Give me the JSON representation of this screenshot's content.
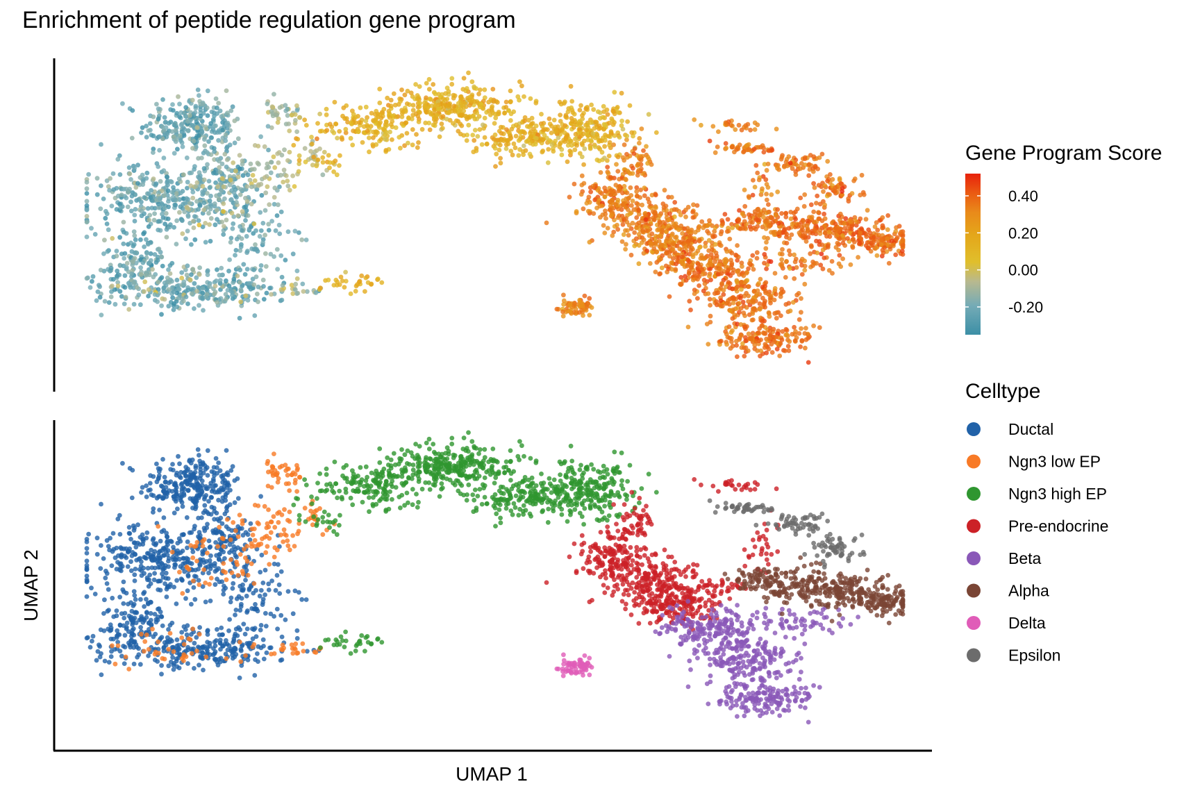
{
  "title": "Enrichment of peptide regulation gene program",
  "chart_data": [
    {
      "panel": "Gene Program Score",
      "type": "scatter",
      "xlabel": "UMAP 1",
      "ylabel": "UMAP 2",
      "xlim": [
        0,
        100
      ],
      "ylim": [
        0,
        100
      ],
      "grid": false,
      "color_scale": {
        "title": "Gene Program Score",
        "domain": [
          -0.35,
          0.52
        ],
        "ticks": [
          0.4,
          0.2,
          0.0,
          -0.2
        ],
        "tick_labels": [
          "0.40",
          "0.20",
          "0.00",
          "-0.20"
        ],
        "colors": [
          "#3c8fa6",
          "#74abb6",
          "#b8b98f",
          "#e0bf2c",
          "#e4a61a",
          "#e98a1a",
          "#ea5a12",
          "#e8220c"
        ]
      }
    },
    {
      "panel": "Celltype",
      "type": "scatter",
      "xlabel": "UMAP 1",
      "ylabel": "UMAP 2",
      "xlim": [
        0,
        100
      ],
      "ylim": [
        0,
        100
      ],
      "grid": false,
      "legend_title": "Celltype",
      "legend_position": "right",
      "series": [
        {
          "name": "Ductal",
          "color": "#2162a8",
          "score": -0.25,
          "regions": [
            [
              13,
              82,
              5,
              8,
              260
            ],
            [
              9,
              58,
              8,
              10,
              330
            ],
            [
              6,
              38,
              4,
              8,
              120
            ],
            [
              14,
              30,
              10,
              6,
              250
            ],
            [
              20,
              46,
              4,
              11,
              90
            ],
            [
              17,
              65,
              3,
              8,
              100
            ]
          ]
        },
        {
          "name": "Ngn3 low EP",
          "color": "#f87a26",
          "score": -0.12,
          "regions": [
            [
              24,
              86,
              2,
              4,
              40
            ],
            [
              22,
              68,
              4,
              8,
              60
            ],
            [
              16,
              60,
              6,
              8,
              50
            ],
            [
              11,
              30,
              8,
              6,
              40
            ],
            [
              26,
              30,
              3,
              2,
              20
            ],
            [
              28,
              72,
              2,
              6,
              20
            ]
          ]
        },
        {
          "name": "Ngn3 high EP",
          "color": "#2f9630",
          "score": 0.1,
          "regions": [
            [
              35,
              82,
              6,
              6,
              170
            ],
            [
              45,
              88,
              7,
              6,
              280
            ],
            [
              55,
              78,
              7,
              5,
              230
            ],
            [
              62,
              82,
              5,
              7,
              170
            ],
            [
              33,
              32,
              3,
              2,
              30
            ],
            [
              29,
              70,
              2,
              3,
              20
            ]
          ]
        },
        {
          "name": "Pre-endocrine",
          "color": "#cc2127",
          "score": 0.3,
          "regions": [
            [
              65,
              58,
              4,
              8,
              180
            ],
            [
              70,
              50,
              4,
              8,
              180
            ],
            [
              73,
              44,
              4,
              6,
              140
            ],
            [
              67,
              70,
              2,
              7,
              50
            ],
            [
              79,
              82,
              3,
              2,
              25
            ],
            [
              83,
              62,
              2,
              8,
              30
            ],
            [
              78,
              50,
              3,
              2,
              30
            ]
          ]
        },
        {
          "name": "Beta",
          "color": "#8a58b8",
          "score": 0.34,
          "regions": [
            [
              77,
              36,
              4,
              6,
              140
            ],
            [
              81,
              26,
              5,
              7,
              190
            ],
            [
              83,
              14,
              6,
              4,
              150
            ],
            [
              87,
              38,
              6,
              4,
              60
            ],
            [
              72,
              38,
              2,
              4,
              30
            ]
          ]
        },
        {
          "name": "Alpha",
          "color": "#7a4535",
          "score": 0.35,
          "regions": [
            [
              87,
              50,
              4,
              5,
              120
            ],
            [
              93,
              48,
              4,
              5,
              140
            ],
            [
              98,
              45,
              3,
              4,
              100
            ],
            [
              82,
              52,
              3,
              3,
              60
            ]
          ]
        },
        {
          "name": "Delta",
          "color": "#e05cb8",
          "score": 0.28,
          "regions": [
            [
              60,
              24,
              1.8,
              2.5,
              60
            ]
          ]
        },
        {
          "name": "Epsilon",
          "color": "#6c6c6c",
          "score": 0.33,
          "regions": [
            [
              81,
              75,
              3,
              1.5,
              40
            ],
            [
              87,
              70,
              3,
              3,
              50
            ],
            [
              92,
              62,
              3,
              4,
              60
            ]
          ]
        }
      ]
    }
  ]
}
